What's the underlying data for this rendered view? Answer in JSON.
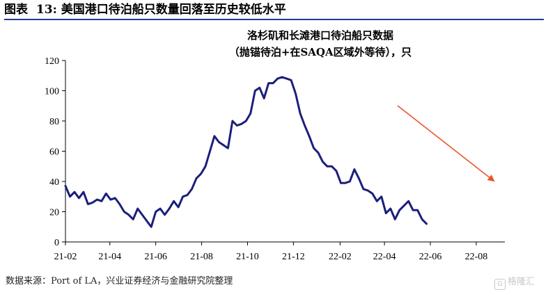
{
  "figure": {
    "label": "图表",
    "number": "13:",
    "title": "美国港口待泊船只数量回落至历史较低水平"
  },
  "source": "数据来源：Port of LA，兴业证券经济与金融研究院整理",
  "watermark": "格隆汇",
  "colors": {
    "series": "#1b1f7a",
    "arrow": "#e8542b",
    "rule": "#1f3c88"
  },
  "chart_data": {
    "type": "line",
    "title": "洛杉矶和长滩港口待泊船只数据",
    "subtitle": "（抛锚待泊+在SAQA区域外等待），只",
    "xlabel": "",
    "ylabel": "",
    "ylim": [
      0,
      120
    ],
    "yticks": [
      0,
      20,
      40,
      60,
      80,
      100,
      120
    ],
    "xlim": [
      "2021-02-01",
      "2022-09-08"
    ],
    "xticks": [
      {
        "date": "2021-02-01",
        "label": "21-02"
      },
      {
        "date": "2021-04-01",
        "label": "21-04"
      },
      {
        "date": "2021-06-01",
        "label": "21-06"
      },
      {
        "date": "2021-08-01",
        "label": "21-08"
      },
      {
        "date": "2021-10-01",
        "label": "21-10"
      },
      {
        "date": "2021-12-01",
        "label": "21-12"
      },
      {
        "date": "2022-02-01",
        "label": "22-02"
      },
      {
        "date": "2022-04-01",
        "label": "22-04"
      },
      {
        "date": "2022-06-01",
        "label": "22-06"
      },
      {
        "date": "2022-08-01",
        "label": "22-08"
      }
    ],
    "grid": false,
    "legend": "none",
    "annotation": "downward trend arrow",
    "series": [
      {
        "points": [
          [
            "2021-02-01",
            37
          ],
          [
            "2021-02-07",
            30
          ],
          [
            "2021-02-13",
            33
          ],
          [
            "2021-02-19",
            29
          ],
          [
            "2021-02-25",
            33
          ],
          [
            "2021-03-03",
            25
          ],
          [
            "2021-03-09",
            26
          ],
          [
            "2021-03-15",
            28
          ],
          [
            "2021-03-21",
            27
          ],
          [
            "2021-03-27",
            32
          ],
          [
            "2021-04-02",
            28
          ],
          [
            "2021-04-08",
            29
          ],
          [
            "2021-04-14",
            25
          ],
          [
            "2021-04-20",
            20
          ],
          [
            "2021-04-26",
            18
          ],
          [
            "2021-05-02",
            15
          ],
          [
            "2021-05-08",
            22
          ],
          [
            "2021-05-14",
            18
          ],
          [
            "2021-05-20",
            14
          ],
          [
            "2021-05-26",
            10
          ],
          [
            "2021-06-01",
            20
          ],
          [
            "2021-06-07",
            22
          ],
          [
            "2021-06-13",
            18
          ],
          [
            "2021-06-19",
            22
          ],
          [
            "2021-06-25",
            27
          ],
          [
            "2021-07-01",
            23
          ],
          [
            "2021-07-07",
            30
          ],
          [
            "2021-07-13",
            31
          ],
          [
            "2021-07-19",
            35
          ],
          [
            "2021-07-25",
            42
          ],
          [
            "2021-07-31",
            45
          ],
          [
            "2021-08-06",
            50
          ],
          [
            "2021-08-12",
            60
          ],
          [
            "2021-08-18",
            70
          ],
          [
            "2021-08-24",
            66
          ],
          [
            "2021-08-30",
            64
          ],
          [
            "2021-09-05",
            62
          ],
          [
            "2021-09-11",
            80
          ],
          [
            "2021-09-17",
            77
          ],
          [
            "2021-09-23",
            78
          ],
          [
            "2021-09-29",
            80
          ],
          [
            "2021-10-05",
            85
          ],
          [
            "2021-10-11",
            100
          ],
          [
            "2021-10-17",
            102
          ],
          [
            "2021-10-23",
            95
          ],
          [
            "2021-10-29",
            105
          ],
          [
            "2021-11-04",
            105
          ],
          [
            "2021-11-10",
            108
          ],
          [
            "2021-11-16",
            109
          ],
          [
            "2021-11-22",
            108
          ],
          [
            "2021-11-28",
            107
          ],
          [
            "2021-12-04",
            98
          ],
          [
            "2021-12-10",
            85
          ],
          [
            "2021-12-16",
            77
          ],
          [
            "2021-12-22",
            70
          ],
          [
            "2021-12-28",
            62
          ],
          [
            "2022-01-03",
            59
          ],
          [
            "2022-01-09",
            53
          ],
          [
            "2022-01-15",
            50
          ],
          [
            "2022-01-21",
            50
          ],
          [
            "2022-01-27",
            47
          ],
          [
            "2022-02-02",
            39
          ],
          [
            "2022-02-08",
            39
          ],
          [
            "2022-02-14",
            40
          ],
          [
            "2022-02-20",
            48
          ],
          [
            "2022-02-26",
            42
          ],
          [
            "2022-03-04",
            35
          ],
          [
            "2022-03-10",
            34
          ],
          [
            "2022-03-16",
            32
          ],
          [
            "2022-03-22",
            27
          ],
          [
            "2022-03-28",
            30
          ],
          [
            "2022-04-03",
            19
          ],
          [
            "2022-04-09",
            22
          ],
          [
            "2022-04-15",
            15
          ],
          [
            "2022-04-21",
            21
          ],
          [
            "2022-04-27",
            24
          ],
          [
            "2022-05-03",
            27
          ],
          [
            "2022-05-09",
            21
          ],
          [
            "2022-05-15",
            21
          ],
          [
            "2022-05-21",
            15
          ],
          [
            "2022-05-27",
            12
          ]
        ]
      }
    ]
  }
}
